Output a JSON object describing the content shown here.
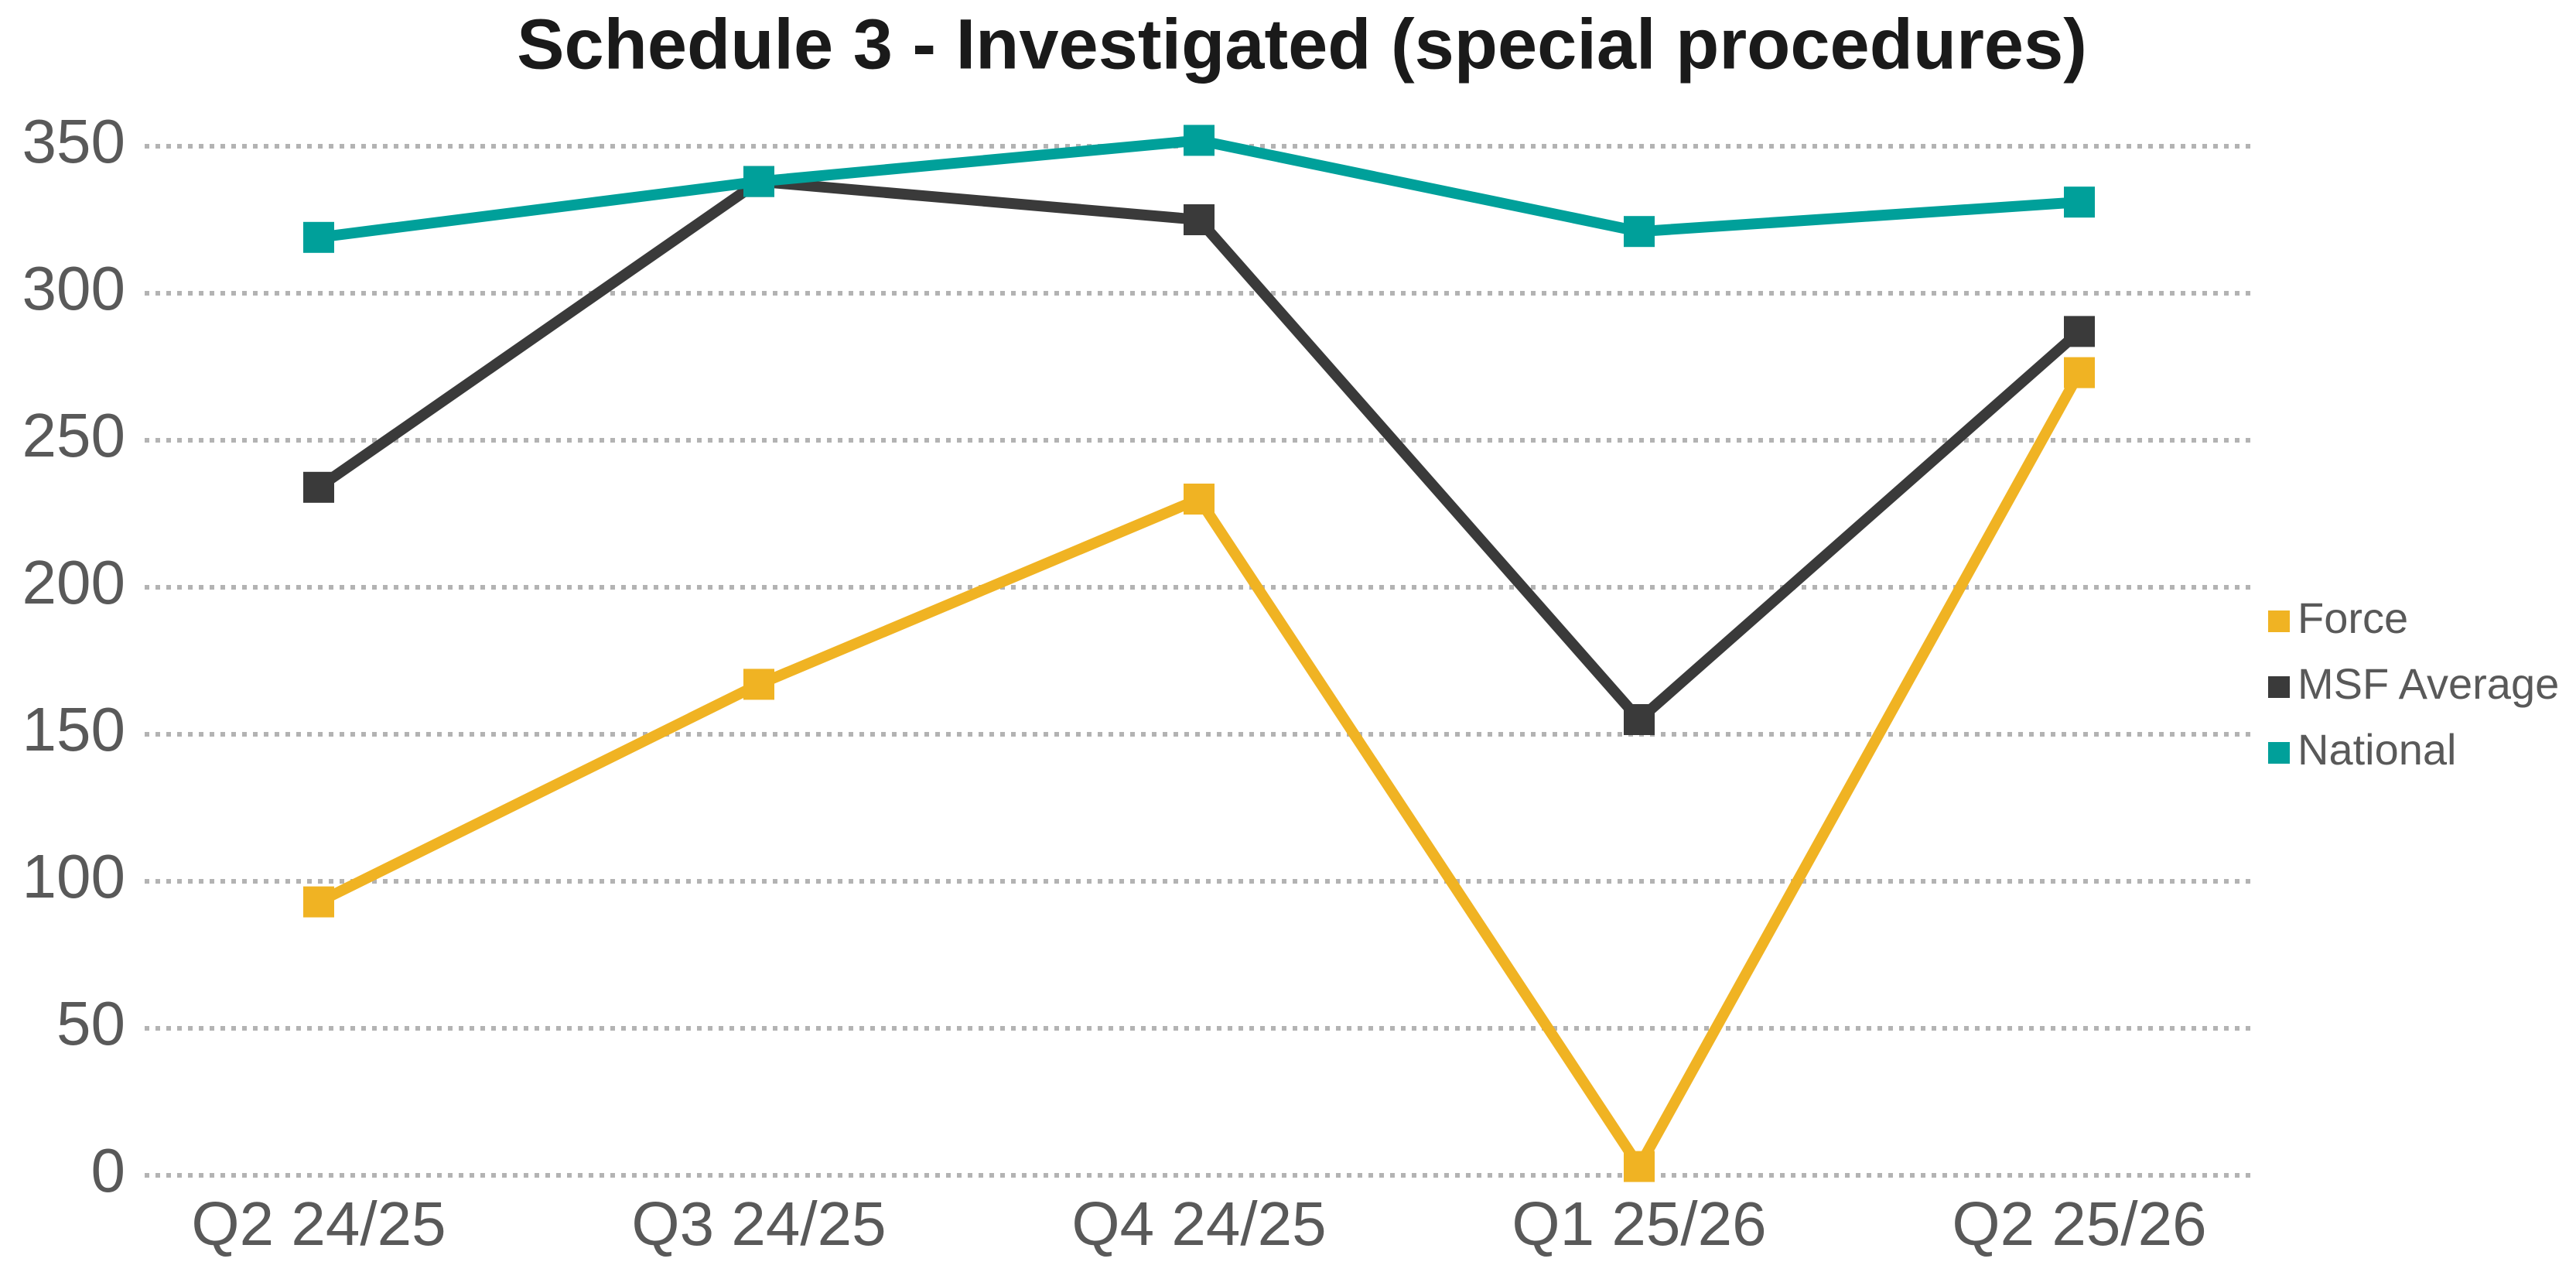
{
  "chart_data": {
    "type": "line",
    "title": "Schedule 3 - Investigated (special procedures)",
    "categories": [
      "Q2 24/25",
      "Q3 24/25",
      "Q4 24/25",
      "Q1 25/26",
      "Q2 25/26"
    ],
    "series": [
      {
        "name": "Force",
        "color": "#f0b323",
        "values": [
          93,
          167,
          230,
          3,
          273
        ]
      },
      {
        "name": "MSF Average",
        "color": "#3a3a3a",
        "values": [
          234,
          338,
          325,
          155,
          287
        ]
      },
      {
        "name": "National",
        "color": "#00a09a",
        "values": [
          319,
          338,
          352,
          321,
          331
        ]
      }
    ],
    "ylim": [
      0,
      350
    ],
    "yticks": [
      0,
      50,
      100,
      150,
      200,
      250,
      300,
      350
    ],
    "grid": true,
    "legend": "right"
  }
}
